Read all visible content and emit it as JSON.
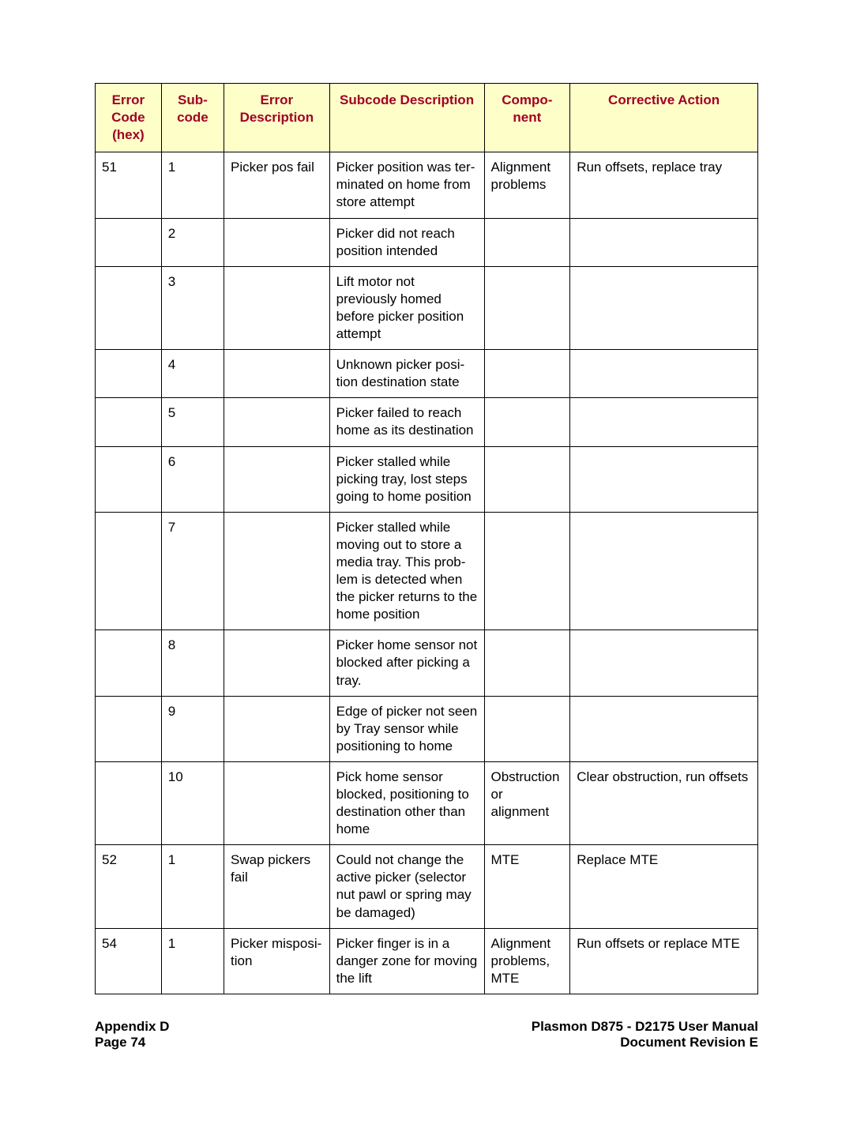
{
  "table": {
    "header_bg": "#feffc8",
    "header_text_color": "#a10026",
    "border_color": "#000000",
    "columns": [
      "Error Code (hex)",
      "Sub-code",
      "Error Description",
      "Subcode Description",
      "Compo-nent",
      "Corrective Action"
    ],
    "rows": [
      {
        "code": "51",
        "subcode": "1",
        "descr": "Picker pos fail",
        "subdescr": "Picker position was ter-minated on home from store attempt",
        "component": "Alignment problems",
        "action": "Run offsets, replace tray"
      },
      {
        "code": "",
        "subcode": "2",
        "descr": "",
        "subdescr": "Picker did not reach position intended",
        "component": "",
        "action": ""
      },
      {
        "code": "",
        "subcode": "3",
        "descr": "",
        "subdescr": "Lift motor not previously homed before picker position attempt",
        "component": "",
        "action": ""
      },
      {
        "code": "",
        "subcode": "4",
        "descr": "",
        "subdescr": "Unknown picker posi-tion destination state",
        "component": "",
        "action": ""
      },
      {
        "code": "",
        "subcode": "5",
        "descr": "",
        "subdescr": "Picker failed to reach home as its destination",
        "component": "",
        "action": ""
      },
      {
        "code": "",
        "subcode": "6",
        "descr": "",
        "subdescr": "Picker stalled while picking tray, lost steps going to home position",
        "component": "",
        "action": ""
      },
      {
        "code": "",
        "subcode": "7",
        "descr": "",
        "subdescr": "Picker stalled while moving out to store a media tray. This prob-lem is detected when the picker returns to the home position",
        "component": "",
        "action": ""
      },
      {
        "code": "",
        "subcode": "8",
        "descr": "",
        "subdescr": "Picker home sensor not blocked after picking a tray.",
        "component": "",
        "action": ""
      },
      {
        "code": "",
        "subcode": "9",
        "descr": "",
        "subdescr": "Edge of picker not seen by Tray sensor while positioning to home",
        "component": "",
        "action": ""
      },
      {
        "code": "",
        "subcode": "10",
        "descr": "",
        "subdescr": "Pick home sensor blocked, positioning to destination other than home",
        "component": "Obstruction or alignment",
        "action": "Clear obstruction, run offsets"
      },
      {
        "code": "52",
        "subcode": "1",
        "descr": "Swap pickers fail",
        "subdescr": "Could not change the active picker (selector nut pawl or spring may be damaged)",
        "component": "MTE",
        "action": "Replace MTE"
      },
      {
        "code": "54",
        "subcode": "1",
        "descr": "Picker misposi-tion",
        "subdescr": "Picker finger is in a danger zone for moving the lift",
        "component": "Alignment problems, MTE",
        "action": "Run offsets or replace MTE"
      }
    ]
  },
  "footer": {
    "left_line1": "Appendix D",
    "left_line2": "Page 74",
    "right_line1": "Plasmon D875 - D2175 User Manual",
    "right_line2": "Document Revision E"
  }
}
